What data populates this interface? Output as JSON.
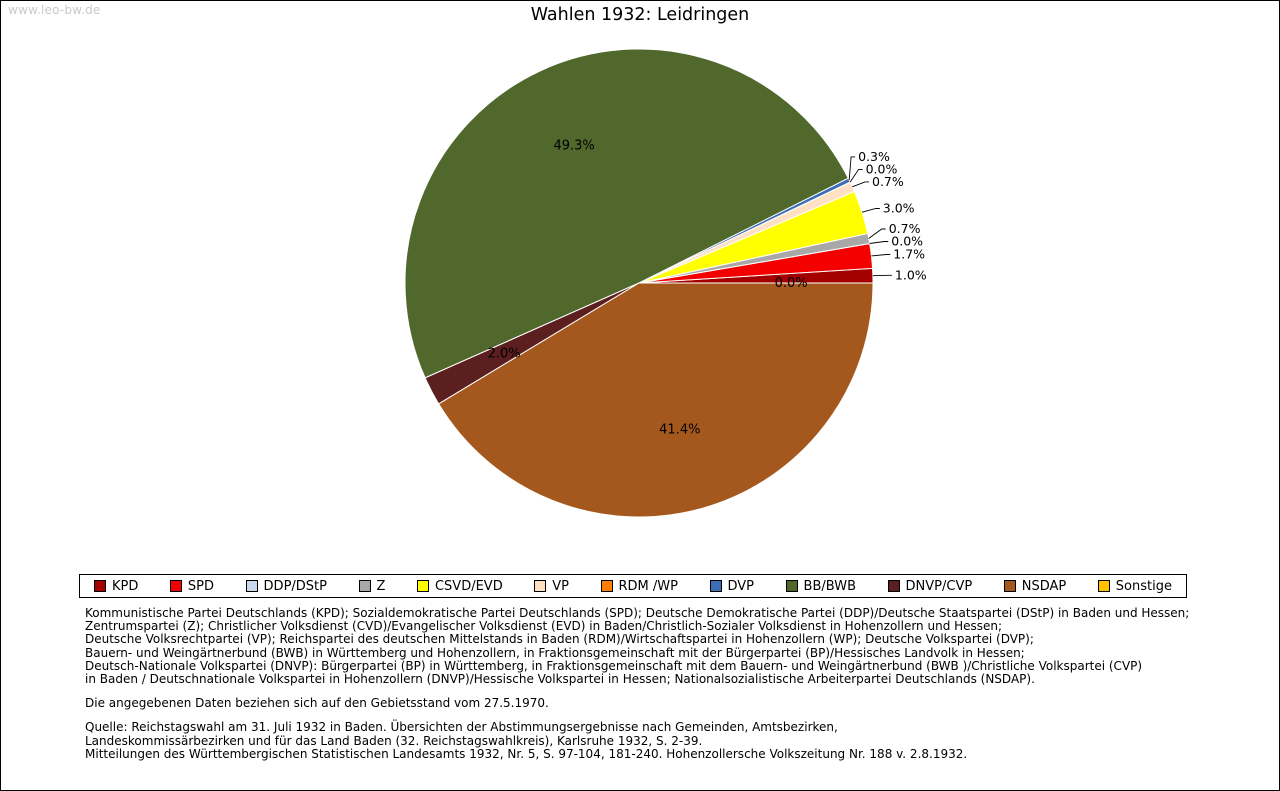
{
  "page": {
    "watermark": "www.leo-bw.de"
  },
  "chart_data": {
    "type": "pie",
    "title": "Wahlen 1932: Leidringen",
    "start_angle_deg": 0,
    "direction": "counterclockwise",
    "legend_position": "bottom",
    "series": [
      {
        "name": "KPD",
        "value": 1.0,
        "label": "1.0%",
        "color": "#a40000",
        "placement": "callout"
      },
      {
        "name": "SPD",
        "value": 1.7,
        "label": "1.7%",
        "color": "#f50000",
        "placement": "callout"
      },
      {
        "name": "DDP/DStP",
        "value": 0.0,
        "label": "0.0%",
        "color": "#c9d9f0",
        "placement": "callout"
      },
      {
        "name": "Z",
        "value": 0.7,
        "label": "0.7%",
        "color": "#a8a8a8",
        "placement": "callout"
      },
      {
        "name": "CSVD/EVD",
        "value": 3.0,
        "label": "3.0%",
        "color": "#ffff00",
        "placement": "callout"
      },
      {
        "name": "VP",
        "value": 0.7,
        "label": "0.7%",
        "color": "#ffe0c2",
        "placement": "callout"
      },
      {
        "name": "RDM /WP",
        "value": 0.0,
        "label": "0.0%",
        "color": "#ff8000",
        "placement": "callout"
      },
      {
        "name": "DVP",
        "value": 0.3,
        "label": "0.3%",
        "color": "#3d6eb5",
        "placement": "callout"
      },
      {
        "name": "BB/BWB",
        "value": 49.3,
        "label": "49.3%",
        "color": "#51682d",
        "placement": "inside"
      },
      {
        "name": "DNVP/CVP",
        "value": 2.0,
        "label": "2.0%",
        "color": "#5c1f1f",
        "placement": "inside"
      },
      {
        "name": "NSDAP",
        "value": 41.4,
        "label": "41.4%",
        "color": "#a4581d",
        "placement": "inside"
      },
      {
        "name": "Sonstige",
        "value": 0.0,
        "label": "0.0%",
        "color": "#ffc000",
        "placement": "inside"
      }
    ]
  },
  "footnotes": {
    "party_definitions": [
      "Kommunistische Partei Deutschlands (KPD); Sozialdemokratische Partei Deutschlands (SPD); Deutsche Demokratische Partei (DDP)/Deutsche Staatspartei (DStP) in Baden und Hessen;",
      "Zentrumspartei (Z); Christlicher Volksdienst (CVD)/Evangelischer Volksdienst (EVD) in Baden/Christlich-Sozialer Volksdienst in Hohenzollern und Hessen;",
      "Deutsche Volksrechtpartei (VP); Reichspartei des deutschen Mittelstands in Baden (RDM)/Wirtschaftspartei in Hohenzollern (WP); Deutsche Volkspartei (DVP);",
      "Bauern- und Weingärtnerbund (BWB) in Württemberg und Hohenzollern, in Fraktionsgemeinschaft mit der Bürgerpartei (BP)/Hessisches Landvolk in Hessen;",
      "Deutsch-Nationale Volkspartei (DNVP): Bürgerpartei (BP) in Württemberg, in Fraktionsgemeinschaft mit dem Bauern- und Weingärtnerbund (BWB )/Christliche Volkspartei (CVP)",
      "in Baden / Deutschnationale Volkspartei in Hohenzollern (DNVP)/Hessische Volkspartei in Hessen; Nationalsozialistische Arbeiterpartei Deutschlands (NSDAP)."
    ],
    "territorial_note": "Die angegebenen Daten beziehen sich auf den Gebietsstand vom 27.5.1970.",
    "source_lines": [
      "Quelle: Reichstagswahl am 31. Juli 1932 in Baden. Übersichten der Abstimmungsergebnisse nach Gemeinden, Amtsbezirken,",
      "Landeskommissärbezirken und für das Land Baden (32. Reichstagswahlkreis), Karlsruhe 1932, S. 2-39.",
      "Mitteilungen des Württembergischen Statistischen Landesamts 1932, Nr. 5, S. 97-104, 181-240. Hohenzollersche Volkszeitung Nr. 188 v. 2.8.1932."
    ]
  }
}
